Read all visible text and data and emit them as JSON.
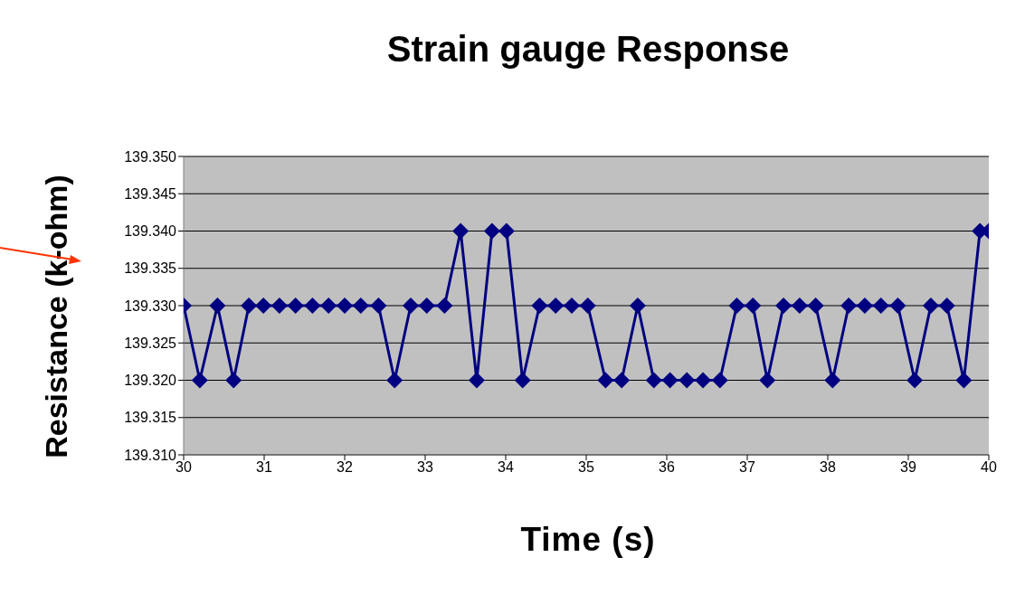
{
  "chart_data": {
    "type": "line",
    "title": "Strain gauge Response",
    "xlabel": "Time (s)",
    "ylabel": "Resistance (k-ohm)",
    "x": [
      30.0,
      30.2,
      30.42,
      30.62,
      30.81,
      30.99,
      31.19,
      31.39,
      31.6,
      31.8,
      32.0,
      32.2,
      32.42,
      32.62,
      32.82,
      33.02,
      33.24,
      33.44,
      33.64,
      33.83,
      34.01,
      34.21,
      34.42,
      34.62,
      34.82,
      35.02,
      35.24,
      35.44,
      35.64,
      35.84,
      36.04,
      36.25,
      36.45,
      36.66,
      36.87,
      37.07,
      37.25,
      37.45,
      37.65,
      37.85,
      38.06,
      38.26,
      38.46,
      38.66,
      38.87,
      39.08,
      39.28,
      39.48,
      39.69,
      39.89,
      40.0
    ],
    "series": [
      {
        "color": "#000080",
        "values": [
          139.33,
          139.32,
          139.33,
          139.32,
          139.33,
          139.33,
          139.33,
          139.33,
          139.33,
          139.33,
          139.33,
          139.33,
          139.33,
          139.32,
          139.33,
          139.33,
          139.33,
          139.34,
          139.32,
          139.34,
          139.34,
          139.32,
          139.33,
          139.33,
          139.33,
          139.33,
          139.32,
          139.32,
          139.33,
          139.32,
          139.32,
          139.32,
          139.32,
          139.32,
          139.33,
          139.33,
          139.32,
          139.33,
          139.33,
          139.33,
          139.32,
          139.33,
          139.33,
          139.33,
          139.33,
          139.32,
          139.33,
          139.33,
          139.32,
          139.34,
          139.34
        ]
      }
    ],
    "xlim": [
      30,
      40
    ],
    "xticks": [
      30,
      31,
      32,
      33,
      34,
      35,
      36,
      37,
      38,
      39,
      40
    ],
    "ylim": [
      139.31,
      139.35
    ],
    "yticks": [
      {
        "value": 139.31,
        "label": "139.310"
      },
      {
        "value": 139.315,
        "label": "139.315"
      },
      {
        "value": 139.32,
        "label": "139.320"
      },
      {
        "value": 139.325,
        "label": "139.325"
      },
      {
        "value": 139.33,
        "label": "139.330"
      },
      {
        "value": 139.335,
        "label": "139.335"
      },
      {
        "value": 139.34,
        "label": "139.340"
      },
      {
        "value": 139.345,
        "label": "139.345"
      },
      {
        "value": 139.35,
        "label": "139.350"
      }
    ],
    "grid": "y",
    "marker": "diamond",
    "line_style": "solid"
  }
}
